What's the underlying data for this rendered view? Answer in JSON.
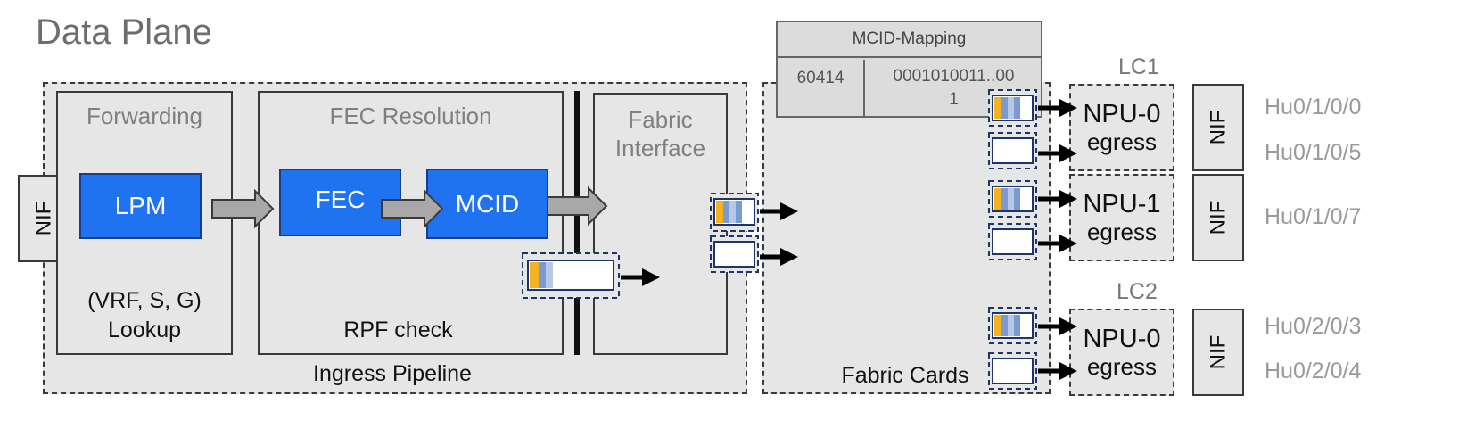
{
  "title": "Data Plane",
  "ingress": {
    "label": "Ingress Pipeline",
    "nif_label": "NIF",
    "forwarding": {
      "title": "Forwarding",
      "lpm": "LPM",
      "caption_line1": "(VRF, S, G)",
      "caption_line2": "Lookup"
    },
    "fec_resolution": {
      "title": "FEC Resolution",
      "fec": "FEC",
      "mcid": "MCID",
      "caption": "RPF check"
    },
    "fabric_interface": {
      "title_line1": "Fabric",
      "title_line2": "Interface"
    }
  },
  "fabric": {
    "label": "Fabric Cards"
  },
  "mcid_mapping": {
    "header": "MCID-Mapping",
    "mcid": "60414",
    "bitmap_line1": "0001010011..00",
    "bitmap_line2": "1"
  },
  "line_cards": [
    {
      "label": "LC1",
      "npus": [
        {
          "name": "NPU-0",
          "role": "egress",
          "nif": "NIF",
          "ports": [
            "Hu0/1/0/0",
            "Hu0/1/0/5"
          ]
        },
        {
          "name": "NPU-1",
          "role": "egress",
          "nif": "NIF",
          "ports": [
            "Hu0/1/0/7"
          ]
        }
      ]
    },
    {
      "label": "LC2",
      "npus": [
        {
          "name": "NPU-0",
          "role": "egress",
          "nif": "NIF",
          "ports": [
            "Hu0/2/0/3",
            "Hu0/2/0/4"
          ]
        }
      ]
    }
  ],
  "colors": {
    "block_blue": "#1f73f0",
    "panel_gray": "#e6e6e6",
    "packet_orange": "#f3b323",
    "packet_blue": "#7c9ad2",
    "packet_light": "#b7c7e6",
    "packet_border": "#1e3566"
  }
}
